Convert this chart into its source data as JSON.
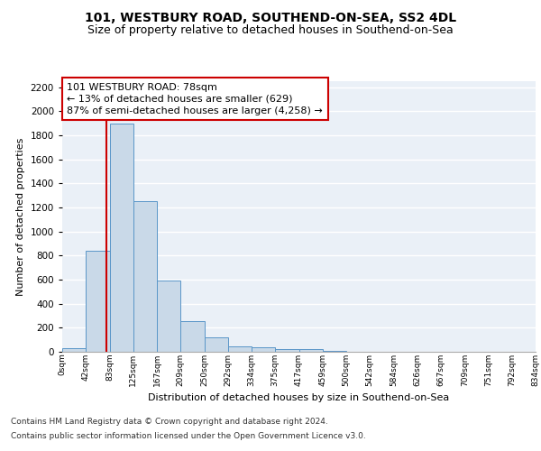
{
  "title1": "101, WESTBURY ROAD, SOUTHEND-ON-SEA, SS2 4DL",
  "title2": "Size of property relative to detached houses in Southend-on-Sea",
  "xlabel": "Distribution of detached houses by size in Southend-on-Sea",
  "ylabel": "Number of detached properties",
  "bar_values": [
    30,
    840,
    1900,
    1250,
    590,
    255,
    120,
    45,
    40,
    25,
    20,
    10,
    0,
    0,
    0,
    0,
    0,
    0,
    0,
    0
  ],
  "bin_labels": [
    "0sqm",
    "42sqm",
    "83sqm",
    "125sqm",
    "167sqm",
    "209sqm",
    "250sqm",
    "292sqm",
    "334sqm",
    "375sqm",
    "417sqm",
    "459sqm",
    "500sqm",
    "542sqm",
    "584sqm",
    "626sqm",
    "667sqm",
    "709sqm",
    "751sqm",
    "792sqm",
    "834sqm"
  ],
  "bar_color": "#c9d9e8",
  "bar_edge_color": "#5a96c8",
  "annotation_text": "101 WESTBURY ROAD: 78sqm\n← 13% of detached houses are smaller (629)\n87% of semi-detached houses are larger (4,258) →",
  "annotation_box_color": "#ffffff",
  "annotation_box_edge": "#cc0000",
  "vline_color": "#cc0000",
  "footer1": "Contains HM Land Registry data © Crown copyright and database right 2024.",
  "footer2": "Contains public sector information licensed under the Open Government Licence v3.0.",
  "ylim": [
    0,
    2250
  ],
  "yticks": [
    0,
    200,
    400,
    600,
    800,
    1000,
    1200,
    1400,
    1600,
    1800,
    2000,
    2200
  ],
  "bg_color": "#eaf0f7",
  "grid_color": "#ffffff",
  "title1_fontsize": 10,
  "title2_fontsize": 9,
  "annotation_fontsize": 8,
  "footer_fontsize": 6.5
}
